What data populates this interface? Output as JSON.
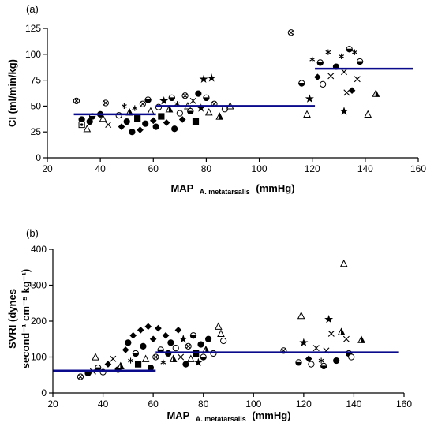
{
  "chart_data": [
    {
      "type": "scatter",
      "panel_label": "(a)",
      "xlabel": "MAP",
      "xlabel_sub": "A. metatarsalis",
      "xlabel_unit": "(mmHg)",
      "ylabel": "CI (ml/min/kg)",
      "xlim": [
        20,
        160
      ],
      "ylim": [
        0,
        125
      ],
      "xticks": [
        "20",
        "40",
        "60",
        "80",
        "100",
        "120",
        "140",
        "160"
      ],
      "yticks": [
        "0",
        "25",
        "50",
        "75",
        "100",
        "125"
      ],
      "grid": false,
      "line_color": "#0a0a8c",
      "mean_lines": [
        {
          "x": [
            30,
            61
          ],
          "y": 42
        },
        {
          "x": [
            61,
            121
          ],
          "y": 50
        },
        {
          "x": [
            121,
            158
          ],
          "y": 86
        }
      ],
      "points": [
        {
          "x": 31,
          "y": 55,
          "m": "hatch"
        },
        {
          "x": 33,
          "y": 37,
          "m": "circle-filled"
        },
        {
          "x": 33,
          "y": 32,
          "m": "square-dot"
        },
        {
          "x": 35,
          "y": 28,
          "m": "triangle-open"
        },
        {
          "x": 36,
          "y": 35,
          "m": "circle-filled"
        },
        {
          "x": 37,
          "y": 40,
          "m": "circle-half"
        },
        {
          "x": 40,
          "y": 42,
          "m": "circle-filled"
        },
        {
          "x": 41,
          "y": 38,
          "m": "triangle-open"
        },
        {
          "x": 42,
          "y": 53,
          "m": "hatch"
        },
        {
          "x": 43,
          "y": 32,
          "m": "x"
        },
        {
          "x": 47,
          "y": 41,
          "m": "circle-open"
        },
        {
          "x": 48,
          "y": 30,
          "m": "diamond-filled"
        },
        {
          "x": 49,
          "y": 50,
          "m": "asterisk"
        },
        {
          "x": 50,
          "y": 35,
          "m": "circle-filled"
        },
        {
          "x": 51,
          "y": 44,
          "m": "triangle-half"
        },
        {
          "x": 52,
          "y": 25,
          "m": "circle-filled"
        },
        {
          "x": 53,
          "y": 48,
          "m": "asterisk"
        },
        {
          "x": 54,
          "y": 38,
          "m": "square-filled"
        },
        {
          "x": 55,
          "y": 27,
          "m": "diamond-filled"
        },
        {
          "x": 56,
          "y": 52,
          "m": "hatch"
        },
        {
          "x": 57,
          "y": 33,
          "m": "circle-filled"
        },
        {
          "x": 58,
          "y": 56,
          "m": "circle-half"
        },
        {
          "x": 59,
          "y": 45,
          "m": "triangle-open"
        },
        {
          "x": 60,
          "y": 36,
          "m": "diamond-filled"
        },
        {
          "x": 61,
          "y": 30,
          "m": "circle-filled"
        },
        {
          "x": 62,
          "y": 49,
          "m": "circle-open"
        },
        {
          "x": 63,
          "y": 40,
          "m": "square-filled"
        },
        {
          "x": 64,
          "y": 55,
          "m": "star"
        },
        {
          "x": 65,
          "y": 34,
          "m": "diamond-filled"
        },
        {
          "x": 66,
          "y": 47,
          "m": "triangle-half"
        },
        {
          "x": 67,
          "y": 58,
          "m": "circle-half"
        },
        {
          "x": 68,
          "y": 28,
          "m": "circle-filled"
        },
        {
          "x": 69,
          "y": 52,
          "m": "asterisk"
        },
        {
          "x": 70,
          "y": 43,
          "m": "circle-open"
        },
        {
          "x": 71,
          "y": 37,
          "m": "diamond-filled"
        },
        {
          "x": 72,
          "y": 60,
          "m": "hatch"
        },
        {
          "x": 73,
          "y": 50,
          "m": "triangle-open"
        },
        {
          "x": 74,
          "y": 45,
          "m": "circle-half"
        },
        {
          "x": 75,
          "y": 55,
          "m": "x"
        },
        {
          "x": 76,
          "y": 35,
          "m": "square-filled"
        },
        {
          "x": 77,
          "y": 62,
          "m": "circle-filled"
        },
        {
          "x": 78,
          "y": 48,
          "m": "star"
        },
        {
          "x": 79,
          "y": 76,
          "m": "star"
        },
        {
          "x": 80,
          "y": 58,
          "m": "circle-half"
        },
        {
          "x": 81,
          "y": 44,
          "m": "triangle-open"
        },
        {
          "x": 82,
          "y": 77,
          "m": "star"
        },
        {
          "x": 83,
          "y": 52,
          "m": "hatch"
        },
        {
          "x": 85,
          "y": 40,
          "m": "triangle-half"
        },
        {
          "x": 87,
          "y": 47,
          "m": "circle-open"
        },
        {
          "x": 89,
          "y": 50,
          "m": "triangle-open"
        },
        {
          "x": 112,
          "y": 121,
          "m": "hatch"
        },
        {
          "x": 116,
          "y": 72,
          "m": "circle-half"
        },
        {
          "x": 118,
          "y": 42,
          "m": "triangle-open"
        },
        {
          "x": 119,
          "y": 57,
          "m": "star"
        },
        {
          "x": 120,
          "y": 95,
          "m": "asterisk"
        },
        {
          "x": 122,
          "y": 78,
          "m": "diamond-filled"
        },
        {
          "x": 123,
          "y": 92,
          "m": "circle-half"
        },
        {
          "x": 124,
          "y": 71,
          "m": "circle-open"
        },
        {
          "x": 126,
          "y": 102,
          "m": "asterisk"
        },
        {
          "x": 127,
          "y": 79,
          "m": "x"
        },
        {
          "x": 129,
          "y": 88,
          "m": "circle-filled"
        },
        {
          "x": 131,
          "y": 98,
          "m": "asterisk"
        },
        {
          "x": 132,
          "y": 83,
          "m": "x"
        },
        {
          "x": 133,
          "y": 63,
          "m": "x"
        },
        {
          "x": 134,
          "y": 105,
          "m": "circle-half"
        },
        {
          "x": 135,
          "y": 65,
          "m": "diamond-filled"
        },
        {
          "x": 137,
          "y": 76,
          "m": "x"
        },
        {
          "x": 138,
          "y": 93,
          "m": "circle-half"
        },
        {
          "x": 141,
          "y": 42,
          "m": "triangle-open"
        },
        {
          "x": 144,
          "y": 62,
          "m": "triangle-half"
        },
        {
          "x": 132,
          "y": 45,
          "m": "star"
        },
        {
          "x": 136,
          "y": 102,
          "m": "asterisk"
        }
      ]
    },
    {
      "type": "scatter",
      "panel_label": "(b)",
      "xlabel": "MAP",
      "xlabel_sub": "A. metatarsalis",
      "xlabel_unit": "(mmHg)",
      "ylabel_line1": "SVRI (dynes",
      "ylabel_line2": "second⁻¹ cm⁻⁵ kg⁻¹)",
      "xlim": [
        20,
        160
      ],
      "ylim": [
        0,
        400
      ],
      "xticks": [
        "20",
        "40",
        "60",
        "80",
        "100",
        "120",
        "140",
        "160"
      ],
      "yticks": [
        "0",
        "100",
        "200",
        "300",
        "400"
      ],
      "grid": false,
      "line_color": "#0a0a8c",
      "mean_lines": [
        {
          "x": [
            20,
            61
          ],
          "y": 62
        },
        {
          "x": [
            61,
            158
          ],
          "y": 113
        }
      ],
      "points": [
        {
          "x": 31,
          "y": 45,
          "m": "hatch"
        },
        {
          "x": 34,
          "y": 55,
          "m": "circle-filled"
        },
        {
          "x": 36,
          "y": 60,
          "m": "x"
        },
        {
          "x": 37,
          "y": 100,
          "m": "triangle-open"
        },
        {
          "x": 38,
          "y": 70,
          "m": "circle-half"
        },
        {
          "x": 40,
          "y": 58,
          "m": "circle-open"
        },
        {
          "x": 42,
          "y": 80,
          "m": "diamond-filled"
        },
        {
          "x": 44,
          "y": 95,
          "m": "x"
        },
        {
          "x": 46,
          "y": 65,
          "m": "circle-filled"
        },
        {
          "x": 47,
          "y": 75,
          "m": "triangle-half"
        },
        {
          "x": 49,
          "y": 120,
          "m": "diamond-filled"
        },
        {
          "x": 50,
          "y": 140,
          "m": "circle-filled"
        },
        {
          "x": 51,
          "y": 90,
          "m": "asterisk"
        },
        {
          "x": 52,
          "y": 160,
          "m": "diamond-filled"
        },
        {
          "x": 53,
          "y": 110,
          "m": "circle-half"
        },
        {
          "x": 54,
          "y": 80,
          "m": "square-filled"
        },
        {
          "x": 55,
          "y": 175,
          "m": "diamond-filled"
        },
        {
          "x": 56,
          "y": 130,
          "m": "circle-filled"
        },
        {
          "x": 57,
          "y": 95,
          "m": "triangle-open"
        },
        {
          "x": 58,
          "y": 185,
          "m": "diamond-filled"
        },
        {
          "x": 59,
          "y": 70,
          "m": "circle-filled"
        },
        {
          "x": 60,
          "y": 150,
          "m": "diamond-filled"
        },
        {
          "x": 61,
          "y": 100,
          "m": "hatch"
        },
        {
          "x": 62,
          "y": 180,
          "m": "diamond-filled"
        },
        {
          "x": 63,
          "y": 120,
          "m": "circle-half"
        },
        {
          "x": 64,
          "y": 85,
          "m": "asterisk"
        },
        {
          "x": 65,
          "y": 160,
          "m": "diamond-filled"
        },
        {
          "x": 66,
          "y": 110,
          "m": "circle-filled"
        },
        {
          "x": 67,
          "y": 140,
          "m": "circle-filled"
        },
        {
          "x": 68,
          "y": 95,
          "m": "triangle-half"
        },
        {
          "x": 69,
          "y": 125,
          "m": "circle-open"
        },
        {
          "x": 70,
          "y": 175,
          "m": "diamond-filled"
        },
        {
          "x": 71,
          "y": 100,
          "m": "x"
        },
        {
          "x": 72,
          "y": 150,
          "m": "star"
        },
        {
          "x": 73,
          "y": 80,
          "m": "circle-filled"
        },
        {
          "x": 74,
          "y": 130,
          "m": "hatch"
        },
        {
          "x": 75,
          "y": 95,
          "m": "triangle-open"
        },
        {
          "x": 76,
          "y": 160,
          "m": "circle-half"
        },
        {
          "x": 77,
          "y": 110,
          "m": "square-filled"
        },
        {
          "x": 78,
          "y": 85,
          "m": "star"
        },
        {
          "x": 79,
          "y": 135,
          "m": "circle-filled"
        },
        {
          "x": 80,
          "y": 100,
          "m": "circle-half"
        },
        {
          "x": 81,
          "y": 120,
          "m": "triangle-half"
        },
        {
          "x": 82,
          "y": 150,
          "m": "circle-filled"
        },
        {
          "x": 84,
          "y": 110,
          "m": "circle-open"
        },
        {
          "x": 86,
          "y": 185,
          "m": "triangle-open"
        },
        {
          "x": 87,
          "y": 165,
          "m": "triangle-open"
        },
        {
          "x": 88,
          "y": 145,
          "m": "circle-open"
        },
        {
          "x": 112,
          "y": 118,
          "m": "hatch"
        },
        {
          "x": 118,
          "y": 85,
          "m": "circle-half"
        },
        {
          "x": 119,
          "y": 215,
          "m": "triangle-open"
        },
        {
          "x": 120,
          "y": 140,
          "m": "star"
        },
        {
          "x": 122,
          "y": 95,
          "m": "diamond-filled"
        },
        {
          "x": 123,
          "y": 80,
          "m": "circle-open"
        },
        {
          "x": 125,
          "y": 125,
          "m": "x"
        },
        {
          "x": 127,
          "y": 90,
          "m": "asterisk"
        },
        {
          "x": 128,
          "y": 75,
          "m": "circle-half"
        },
        {
          "x": 129,
          "y": 118,
          "m": "x"
        },
        {
          "x": 130,
          "y": 205,
          "m": "star"
        },
        {
          "x": 131,
          "y": 165,
          "m": "x"
        },
        {
          "x": 133,
          "y": 90,
          "m": "circle-filled"
        },
        {
          "x": 135,
          "y": 170,
          "m": "triangle-half"
        },
        {
          "x": 136,
          "y": 360,
          "m": "triangle-open"
        },
        {
          "x": 137,
          "y": 150,
          "m": "x"
        },
        {
          "x": 138,
          "y": 110,
          "m": "circle-half"
        },
        {
          "x": 139,
          "y": 100,
          "m": "circle-open"
        },
        {
          "x": 143,
          "y": 148,
          "m": "triangle-half"
        }
      ]
    }
  ]
}
